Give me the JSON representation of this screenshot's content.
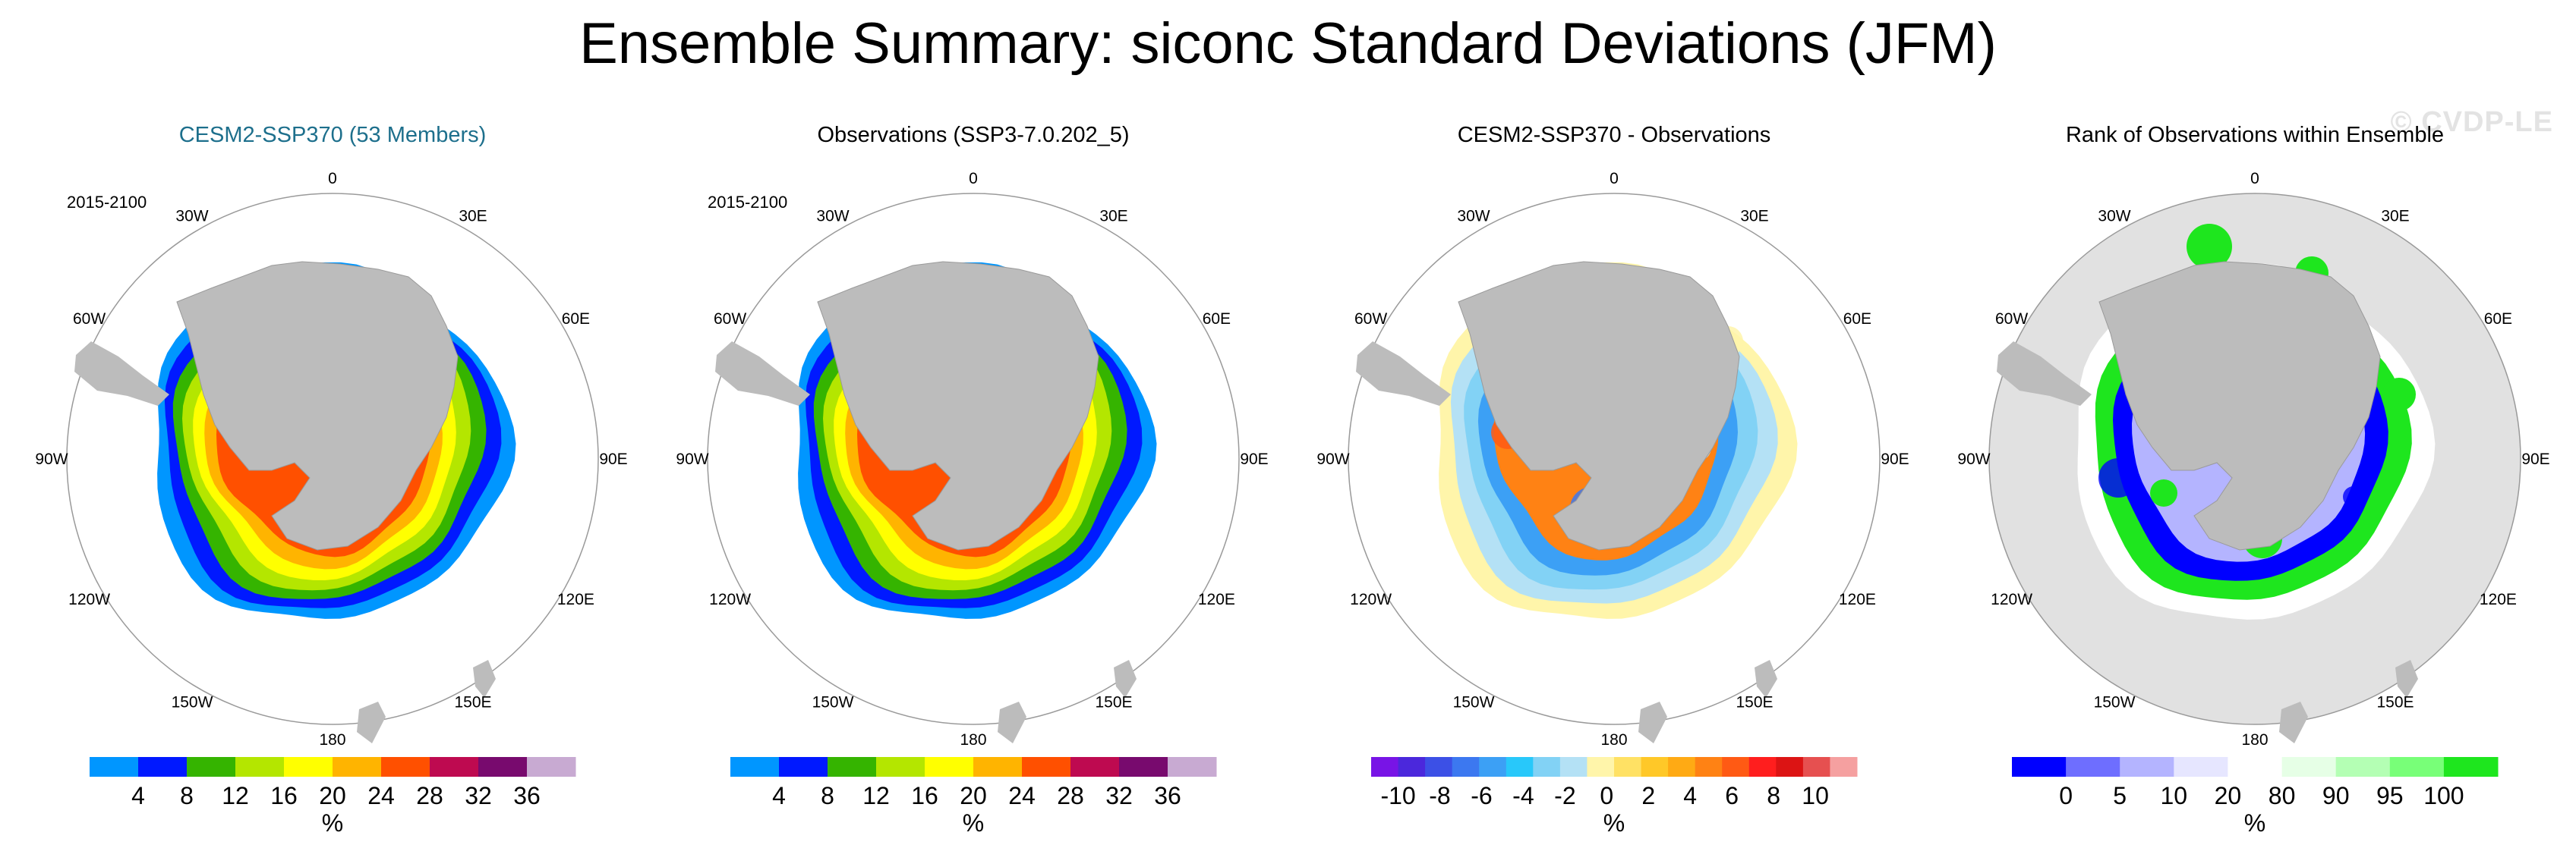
{
  "title": "Ensemble Summary: siconc Standard Deviations (JFM)",
  "watermark": "© CVDP-LE",
  "period": "2015-2100",
  "lon_labels": [
    "0",
    "30E",
    "60E",
    "90E",
    "120E",
    "150E",
    "180",
    "150W",
    "120W",
    "90W",
    "60W",
    "30W"
  ],
  "colors": {
    "land": "#bcbcbc",
    "circle_fill_rank": "#e1e1e1",
    "title_blue": "#1d6f8c"
  },
  "chart_data": [
    {
      "type": "heatmap",
      "title": "CESM2-SSP370 (53 Members)",
      "colorbar_unit": "%",
      "colorbar_ticks": [
        "4",
        "8",
        "12",
        "16",
        "20",
        "24",
        "28",
        "32",
        "36"
      ],
      "colorbar_colors": [
        "#0096ff",
        "#0019ff",
        "#35b400",
        "#b4e600",
        "#ffff00",
        "#ffb400",
        "#ff5000",
        "#be0a50",
        "#780a6e",
        "#c8aad2"
      ],
      "ice_bands": [
        "#0096ff",
        "#0019ff",
        "#35b400",
        "#b4e600",
        "#ffff00",
        "#ffb400",
        "#ff5000"
      ]
    },
    {
      "type": "heatmap",
      "title": "Observations (SSP3-7.0.202_5)",
      "colorbar_unit": "%",
      "colorbar_ticks": [
        "4",
        "8",
        "12",
        "16",
        "20",
        "24",
        "28",
        "32",
        "36"
      ],
      "colorbar_colors": [
        "#0096ff",
        "#0019ff",
        "#35b400",
        "#b4e600",
        "#ffff00",
        "#ffb400",
        "#ff5000",
        "#be0a50",
        "#780a6e",
        "#c8aad2"
      ],
      "ice_bands": [
        "#0096ff",
        "#0019ff",
        "#35b400",
        "#b4e600",
        "#ffff00",
        "#ffb400",
        "#ff5000"
      ]
    },
    {
      "type": "heatmap",
      "title": "CESM2-SSP370 - Observations",
      "colorbar_unit": "%",
      "colorbar_ticks": [
        "-10",
        "-8",
        "-6",
        "-4",
        "-2",
        "0",
        "2",
        "4",
        "6",
        "8",
        "10"
      ],
      "colorbar_colors": [
        "#7814e6",
        "#4b28dc",
        "#3c50e6",
        "#3c78f0",
        "#3ca0f5",
        "#28c8fa",
        "#82d2f5",
        "#b4e1f5",
        "#fff5aa",
        "#ffe164",
        "#ffc828",
        "#ffaa14",
        "#ff8214",
        "#ff5a14",
        "#ff1e1e",
        "#dc1414",
        "#e65050",
        "#f5a0a0"
      ],
      "ice_bands": [
        "#fff5aa",
        "#b4e1f5",
        "#82d2f5",
        "#3ca0f5",
        "#ff8214"
      ]
    },
    {
      "type": "heatmap",
      "title": "Rank of Observations within Ensemble",
      "colorbar_unit": "%",
      "colorbar_ticks": [
        "0",
        "5",
        "10",
        "20",
        "80",
        "90",
        "95",
        "100"
      ],
      "colorbar_colors": [
        "#0000ff",
        "#6e6eff",
        "#b4b4ff",
        "#e6e6ff",
        "#ffffff",
        "#e6ffe6",
        "#b4ffb4",
        "#78ff78",
        "#1ee61e"
      ],
      "ice_bands": [
        "#ffffff",
        "#1ee61e",
        "#0000ff",
        "#b4b4ff"
      ]
    }
  ]
}
